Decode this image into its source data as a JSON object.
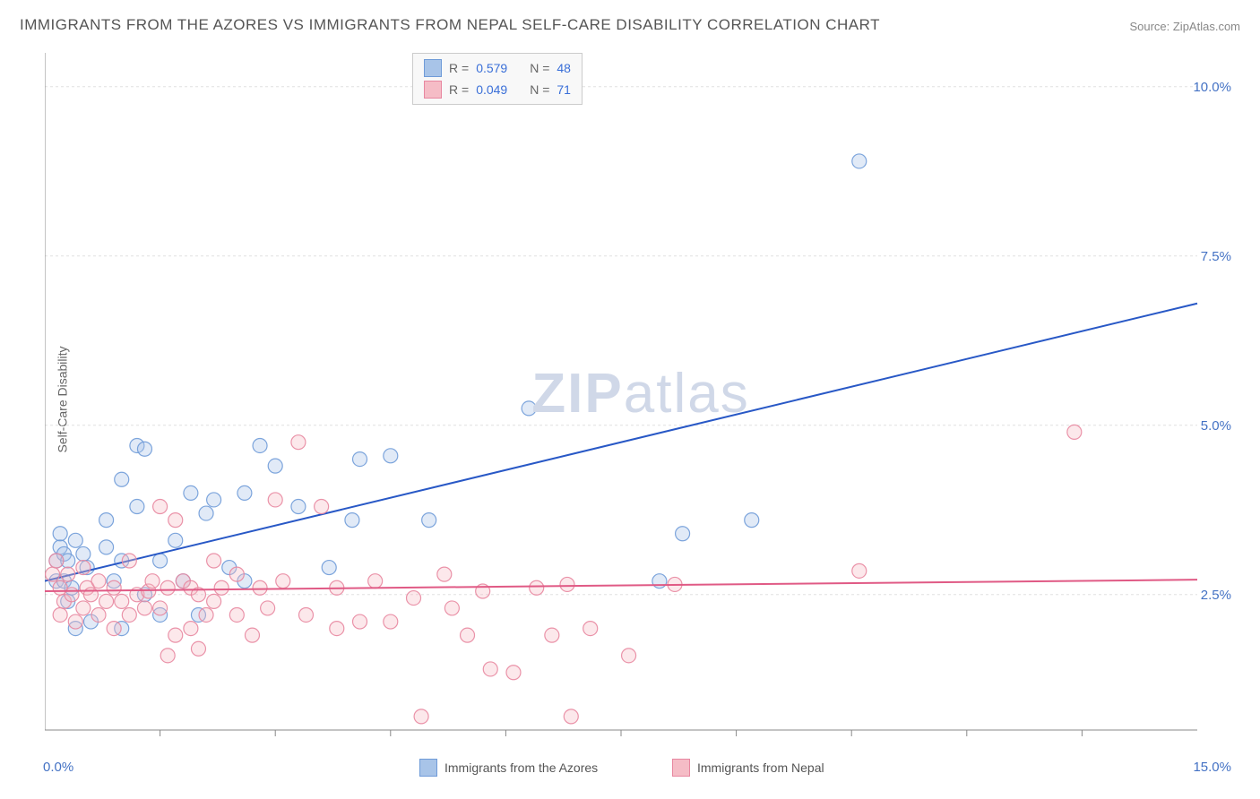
{
  "title": "IMMIGRANTS FROM THE AZORES VS IMMIGRANTS FROM NEPAL SELF-CARE DISABILITY CORRELATION CHART",
  "source": "Source: ZipAtlas.com",
  "ylabel": "Self-Care Disability",
  "watermark_zip": "ZIP",
  "watermark_atlas": "atlas",
  "chart": {
    "type": "scatter",
    "xlim": [
      0,
      15
    ],
    "ylim": [
      0.5,
      10.5
    ],
    "x_tick_positions": [
      1.5,
      3.0,
      4.5,
      6.0,
      7.5,
      9.0,
      10.5,
      12.0,
      13.5
    ],
    "y_gridlines": [
      2.5,
      5.0,
      7.5,
      10.0
    ],
    "x_origin_label": "0.0%",
    "x_max_label": "15.0%",
    "y_tick_labels": [
      "2.5%",
      "5.0%",
      "7.5%",
      "10.0%"
    ],
    "background_color": "#ffffff",
    "grid_color": "#e0e0e0",
    "axis_line_color": "#888888",
    "marker_radius": 8,
    "marker_fill_opacity": 0.35,
    "marker_stroke_opacity": 0.9,
    "line_width": 2
  },
  "stats_legend": {
    "rows": [
      {
        "r_label": "R =",
        "r": "0.579",
        "n_label": "N =",
        "n": "48",
        "swatch_fill": "#a8c4e8",
        "swatch_stroke": "#6f9bd8"
      },
      {
        "r_label": "R =",
        "r": "0.049",
        "n_label": "N =",
        "n": "71",
        "swatch_fill": "#f5bcc6",
        "swatch_stroke": "#e887a0"
      }
    ],
    "value_color": "#3a6fd8",
    "label_color": "#666666"
  },
  "series": [
    {
      "name": "Immigrants from the Azores",
      "color_fill": "#a8c4e8",
      "color_stroke": "#6f9bd8",
      "trend_color": "#2858c6",
      "trend": {
        "y_at_x0": 2.7,
        "y_at_xmax": 6.8
      },
      "points": [
        [
          0.15,
          2.7
        ],
        [
          0.15,
          3.0
        ],
        [
          0.2,
          3.2
        ],
        [
          0.2,
          3.4
        ],
        [
          0.25,
          3.1
        ],
        [
          0.25,
          2.7
        ],
        [
          0.3,
          2.4
        ],
        [
          0.3,
          3.0
        ],
        [
          0.35,
          2.6
        ],
        [
          0.4,
          2.0
        ],
        [
          0.4,
          3.3
        ],
        [
          0.5,
          3.1
        ],
        [
          0.55,
          2.9
        ],
        [
          0.6,
          2.1
        ],
        [
          0.8,
          3.2
        ],
        [
          0.8,
          3.6
        ],
        [
          0.9,
          2.7
        ],
        [
          1.0,
          2.0
        ],
        [
          1.0,
          3.0
        ],
        [
          1.0,
          4.2
        ],
        [
          1.2,
          3.8
        ],
        [
          1.2,
          4.7
        ],
        [
          1.3,
          2.5
        ],
        [
          1.3,
          4.65
        ],
        [
          1.5,
          2.2
        ],
        [
          1.5,
          3.0
        ],
        [
          1.7,
          3.3
        ],
        [
          1.8,
          2.7
        ],
        [
          1.9,
          4.0
        ],
        [
          2.0,
          2.2
        ],
        [
          2.1,
          3.7
        ],
        [
          2.2,
          3.9
        ],
        [
          2.4,
          2.9
        ],
        [
          2.6,
          4.0
        ],
        [
          2.6,
          2.7
        ],
        [
          2.8,
          4.7
        ],
        [
          3.0,
          4.4
        ],
        [
          3.3,
          3.8
        ],
        [
          3.7,
          2.9
        ],
        [
          4.0,
          3.6
        ],
        [
          4.1,
          4.5
        ],
        [
          4.5,
          4.55
        ],
        [
          5.0,
          3.6
        ],
        [
          6.3,
          5.25
        ],
        [
          8.0,
          2.7
        ],
        [
          8.3,
          3.4
        ],
        [
          9.2,
          3.6
        ],
        [
          10.6,
          8.9
        ]
      ]
    },
    {
      "name": "Immigrants from Nepal",
      "color_fill": "#f5bcc6",
      "color_stroke": "#e887a0",
      "trend_color": "#e05a85",
      "trend": {
        "y_at_x0": 2.55,
        "y_at_xmax": 2.72
      },
      "points": [
        [
          0.1,
          2.8
        ],
        [
          0.15,
          3.0
        ],
        [
          0.2,
          2.6
        ],
        [
          0.2,
          2.2
        ],
        [
          0.25,
          2.4
        ],
        [
          0.3,
          2.8
        ],
        [
          0.35,
          2.5
        ],
        [
          0.4,
          2.1
        ],
        [
          0.5,
          2.9
        ],
        [
          0.5,
          2.3
        ],
        [
          0.55,
          2.6
        ],
        [
          0.6,
          2.5
        ],
        [
          0.7,
          2.2
        ],
        [
          0.7,
          2.7
        ],
        [
          0.8,
          2.4
        ],
        [
          0.9,
          2.0
        ],
        [
          0.9,
          2.6
        ],
        [
          1.0,
          2.4
        ],
        [
          1.1,
          2.2
        ],
        [
          1.1,
          3.0
        ],
        [
          1.2,
          2.5
        ],
        [
          1.3,
          2.3
        ],
        [
          1.35,
          2.55
        ],
        [
          1.4,
          2.7
        ],
        [
          1.5,
          3.8
        ],
        [
          1.5,
          2.3
        ],
        [
          1.6,
          2.6
        ],
        [
          1.6,
          1.6
        ],
        [
          1.7,
          1.9
        ],
        [
          1.7,
          3.6
        ],
        [
          1.8,
          2.7
        ],
        [
          1.9,
          2.0
        ],
        [
          1.9,
          2.6
        ],
        [
          2.0,
          1.7
        ],
        [
          2.0,
          2.5
        ],
        [
          2.1,
          2.2
        ],
        [
          2.2,
          2.4
        ],
        [
          2.2,
          3.0
        ],
        [
          2.3,
          2.6
        ],
        [
          2.5,
          2.8
        ],
        [
          2.5,
          2.2
        ],
        [
          2.7,
          1.9
        ],
        [
          2.8,
          2.6
        ],
        [
          2.9,
          2.3
        ],
        [
          3.0,
          3.9
        ],
        [
          3.1,
          2.7
        ],
        [
          3.3,
          4.75
        ],
        [
          3.4,
          2.2
        ],
        [
          3.6,
          3.8
        ],
        [
          3.8,
          2.0
        ],
        [
          3.8,
          2.6
        ],
        [
          4.1,
          2.1
        ],
        [
          4.3,
          2.7
        ],
        [
          4.5,
          2.1
        ],
        [
          4.8,
          2.45
        ],
        [
          4.9,
          0.7
        ],
        [
          5.2,
          2.8
        ],
        [
          5.3,
          2.3
        ],
        [
          5.5,
          1.9
        ],
        [
          5.7,
          2.55
        ],
        [
          5.8,
          1.4
        ],
        [
          6.1,
          1.35
        ],
        [
          6.4,
          2.6
        ],
        [
          6.6,
          1.9
        ],
        [
          6.8,
          2.65
        ],
        [
          6.85,
          0.7
        ],
        [
          7.1,
          2.0
        ],
        [
          7.6,
          1.6
        ],
        [
          8.2,
          2.65
        ],
        [
          10.6,
          2.85
        ],
        [
          13.4,
          4.9
        ]
      ]
    }
  ],
  "bottom_legend": [
    {
      "label": "Immigrants from the Azores",
      "fill": "#a8c4e8",
      "stroke": "#6f9bd8"
    },
    {
      "label": "Immigrants from Nepal",
      "fill": "#f5bcc6",
      "stroke": "#e887a0"
    }
  ]
}
